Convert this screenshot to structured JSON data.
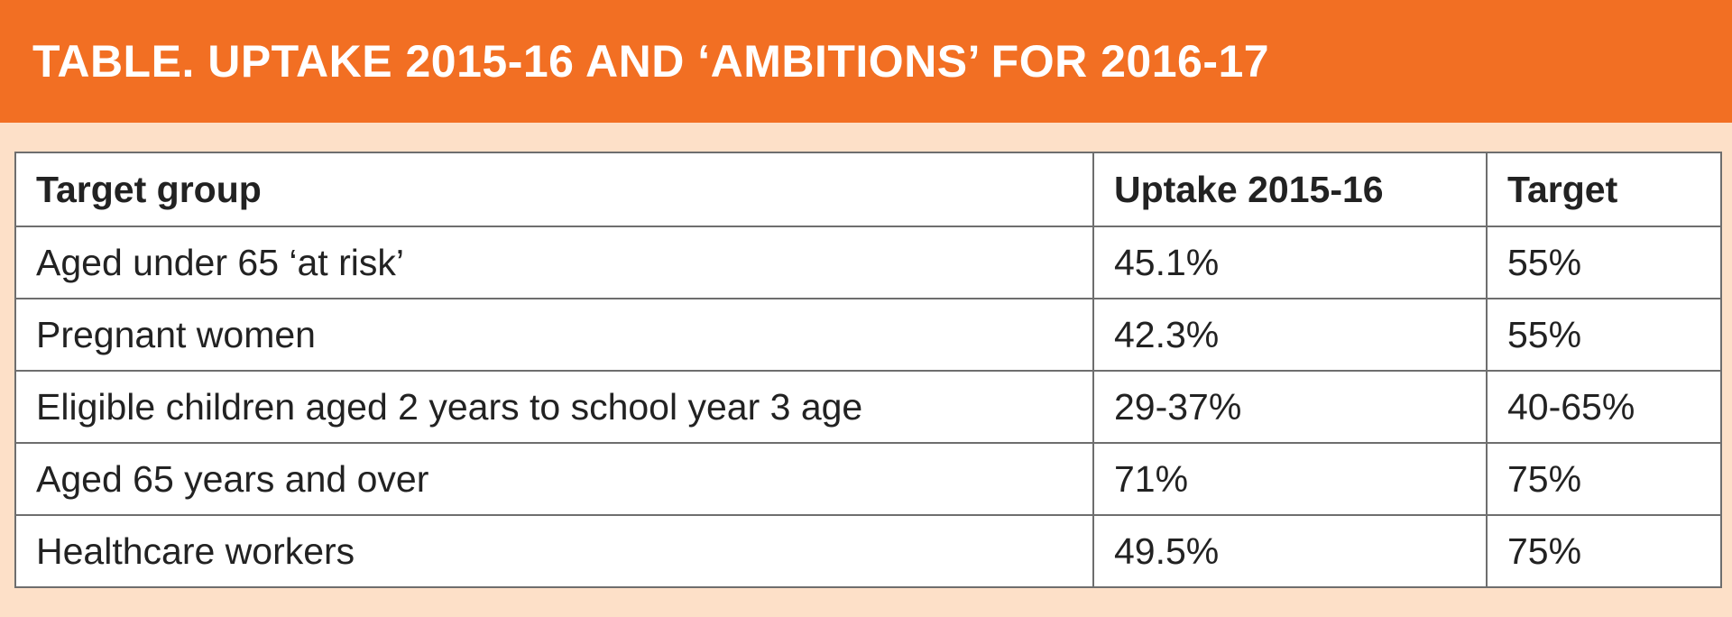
{
  "banner": {
    "title": "TABLE. UPTAKE 2015-16 AND ‘AMBITIONS’ FOR 2016-17"
  },
  "colors": {
    "banner_background": "#f26f23",
    "panel_background": "#fde0c8",
    "table_border": "#6e6e6e",
    "text": "#222222"
  },
  "table": {
    "headers": [
      "Target group",
      "Uptake 2015-16",
      "Target"
    ],
    "rows": [
      [
        "Aged under 65 ‘at risk’",
        "45.1%",
        "55%"
      ],
      [
        "Pregnant women",
        "42.3%",
        "55%"
      ],
      [
        "Eligible children aged 2 years to school year 3 age",
        "29-37%",
        "40-65%"
      ],
      [
        "Aged 65 years and over",
        "71%",
        "75%"
      ],
      [
        "Healthcare workers",
        "49.5%",
        "75%"
      ]
    ]
  }
}
